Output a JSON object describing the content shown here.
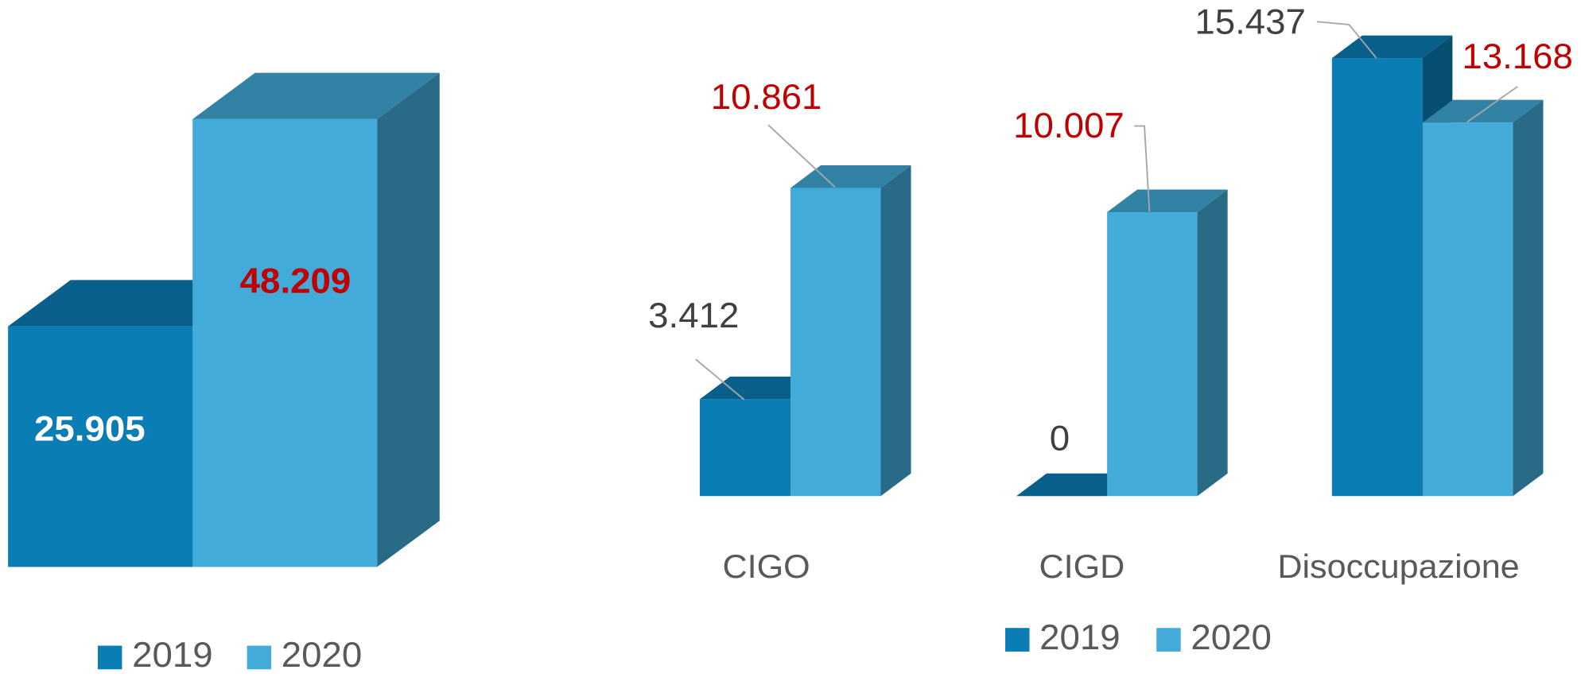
{
  "chart_data": [
    {
      "type": "bar3d",
      "series": [
        {
          "name": "2019",
          "color": "#0a7db5",
          "label_color": "#ffffff",
          "values": [
            25905
          ],
          "value_labels": [
            "25.905"
          ]
        },
        {
          "name": "2020",
          "color": "#42abd9",
          "label_color": "#c00000",
          "values": [
            48209
          ],
          "value_labels": [
            "48.209"
          ]
        }
      ]
    },
    {
      "type": "bar3d",
      "categories": [
        "CIGO",
        "CIGD",
        "Disoccupazione"
      ],
      "series": [
        {
          "name": "2019",
          "color": "#0a7db5",
          "label_color": "#404040",
          "values": [
            3412,
            0,
            15437
          ],
          "value_labels": [
            "3.412",
            "0",
            "15.437"
          ]
        },
        {
          "name": "2020",
          "color": "#42abd9",
          "label_color": "#c00000",
          "values": [
            10861,
            10007,
            13168
          ],
          "value_labels": [
            "10.861",
            "10.007",
            "13.168"
          ]
        }
      ]
    }
  ]
}
